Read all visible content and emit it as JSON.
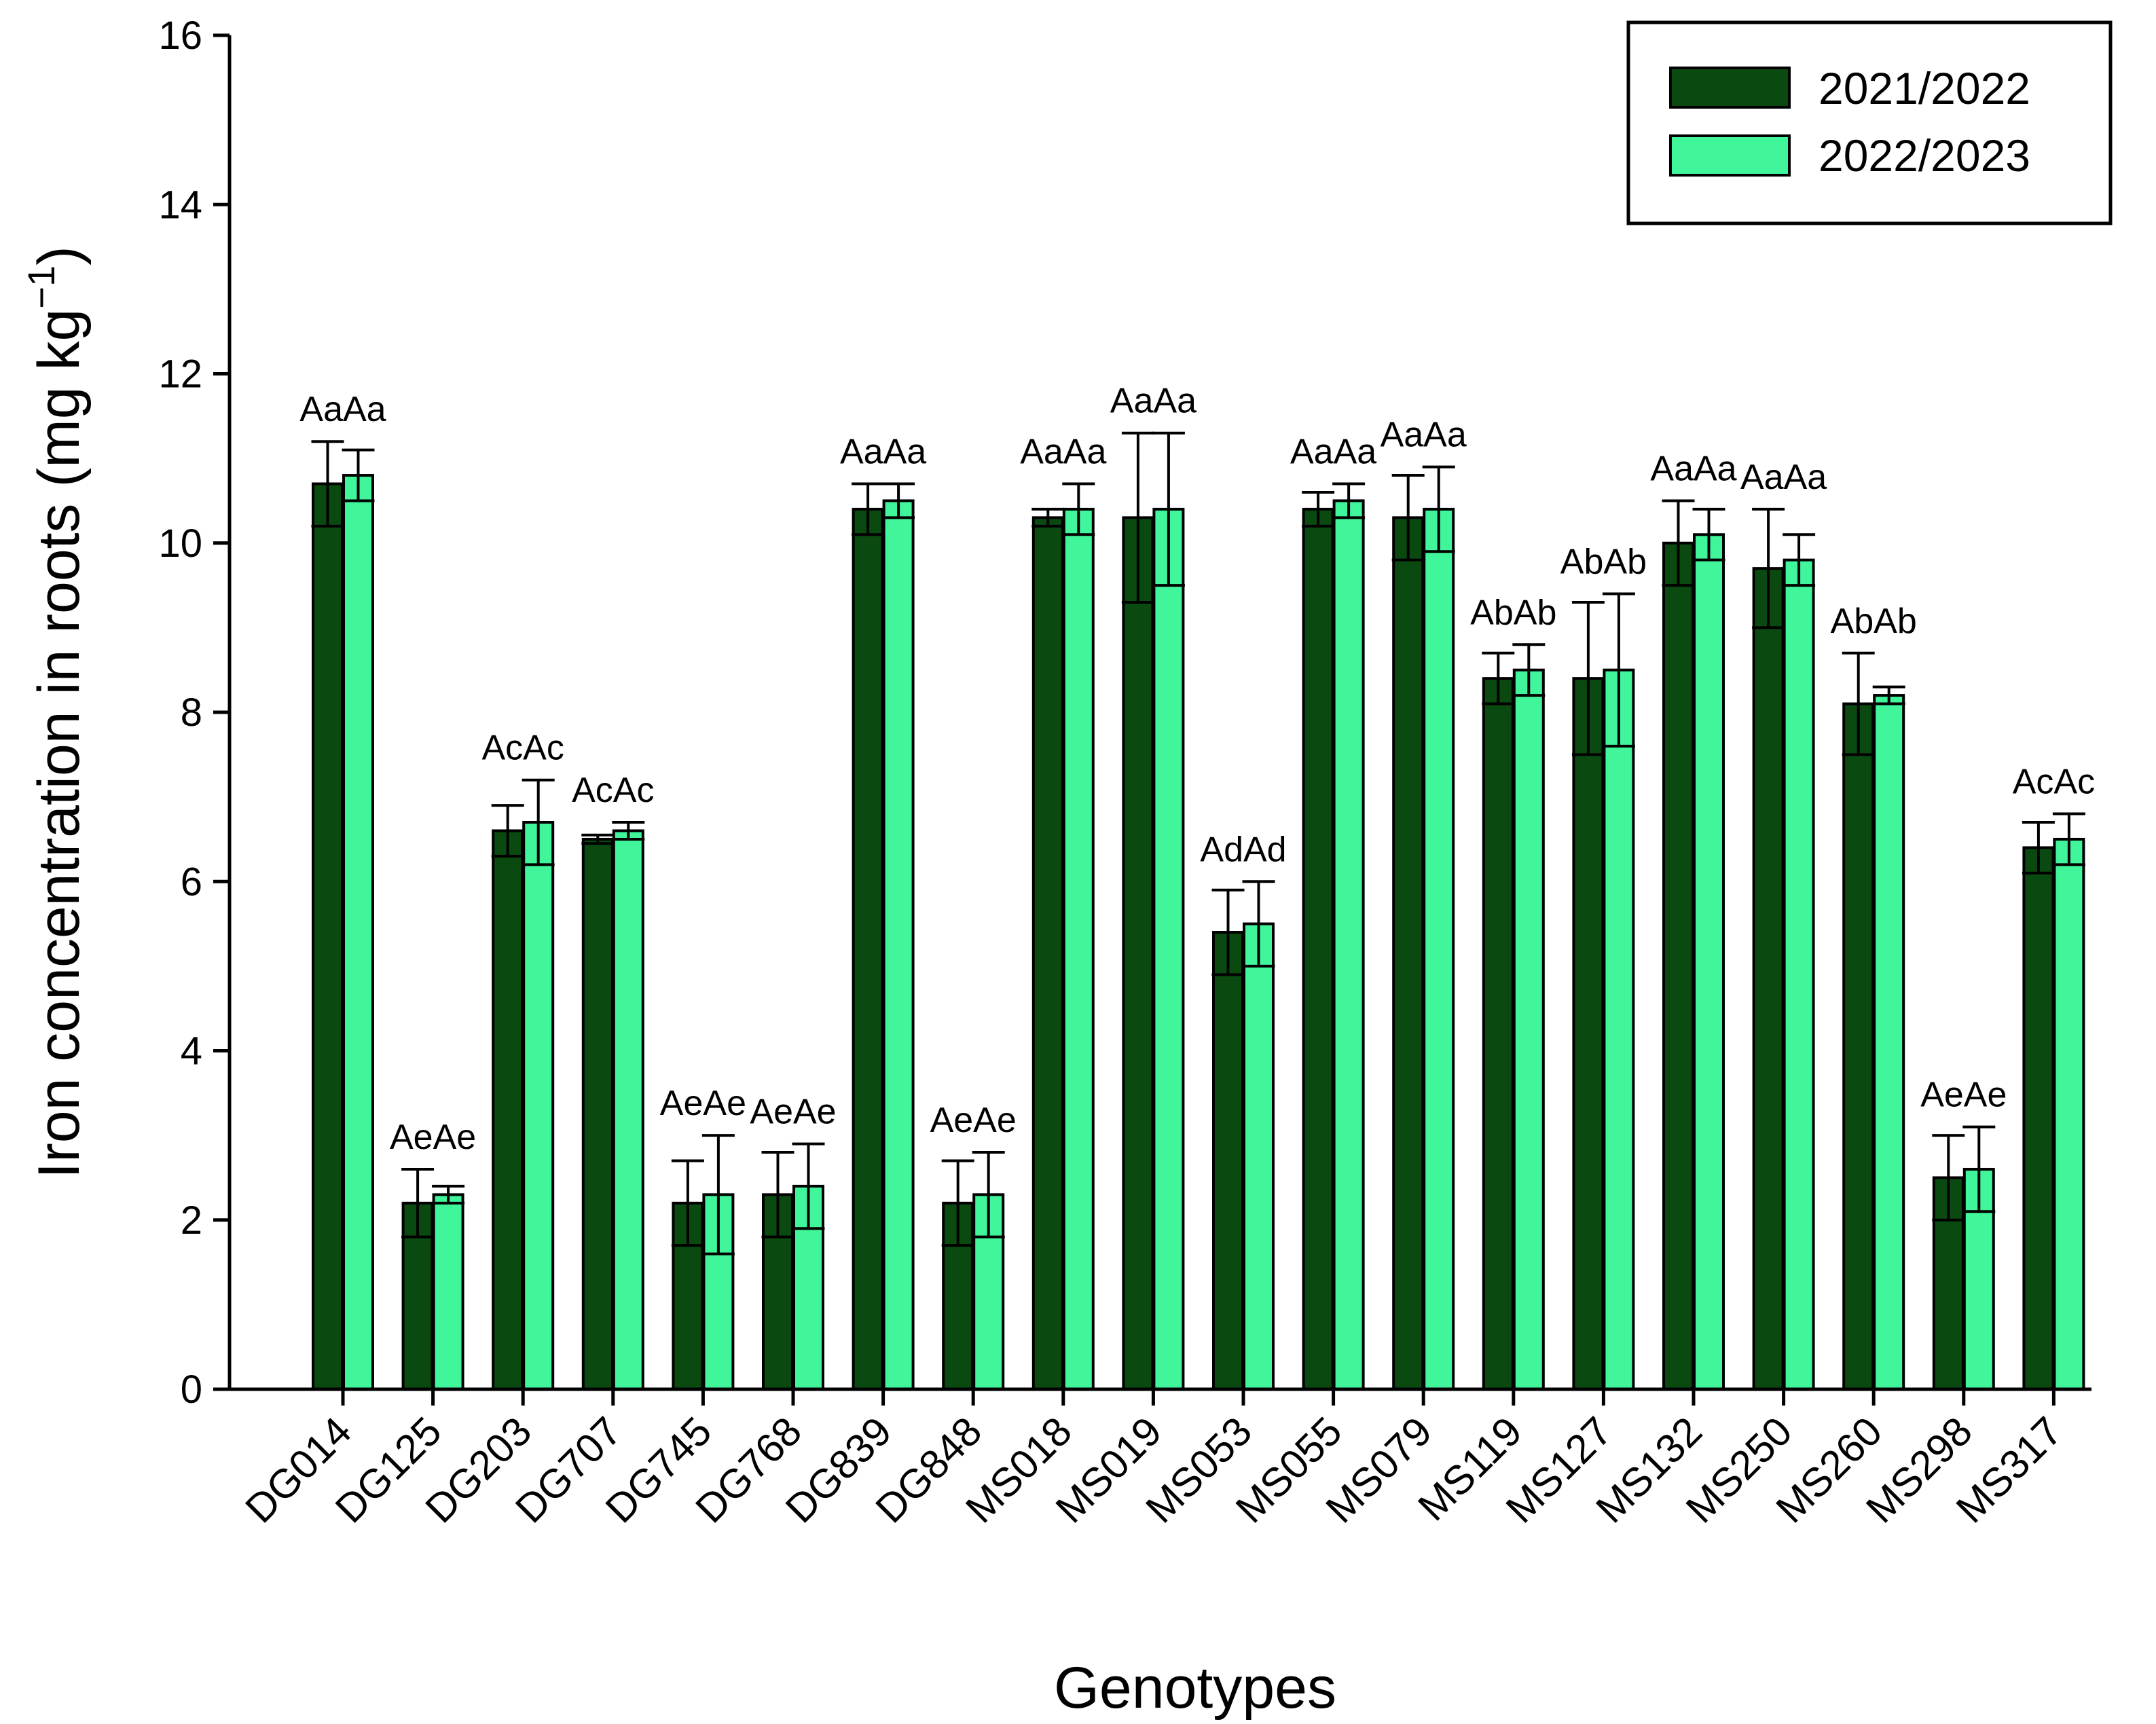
{
  "chart_data": {
    "type": "bar",
    "title": "",
    "xlabel": "Genotypes",
    "ylabel": "Iron concentration in roots (mg kg",
    "ylabel_superscript": "−1",
    "ylabel_close": ")",
    "ylim": [
      0,
      16
    ],
    "yticks": [
      "0",
      "2",
      "4",
      "6",
      "8",
      "10",
      "12",
      "14",
      "16"
    ],
    "legend_position": "top-right",
    "categories": [
      "DG014",
      "DG125",
      "DG203",
      "DG707",
      "DG745",
      "DG768",
      "DG839",
      "DG848",
      "MS018",
      "MS019",
      "MS053",
      "MS055",
      "MS079",
      "MS119",
      "MS127",
      "MS132",
      "MS250",
      "MS260",
      "MS298",
      "MS317"
    ],
    "series": [
      {
        "name": "2021/2022",
        "color": "#0a4a10",
        "values": [
          10.7,
          2.2,
          6.6,
          6.5,
          2.2,
          2.3,
          10.4,
          2.2,
          10.3,
          10.3,
          5.4,
          10.4,
          10.3,
          8.4,
          8.4,
          10.0,
          9.7,
          8.1,
          2.5,
          6.4
        ],
        "errors": [
          0.5,
          0.4,
          0.3,
          0.05,
          0.5,
          0.5,
          0.3,
          0.5,
          0.1,
          1.0,
          0.5,
          0.2,
          0.5,
          0.3,
          0.9,
          0.5,
          0.7,
          0.6,
          0.5,
          0.3
        ]
      },
      {
        "name": "2022/2023",
        "color": "#40f59a",
        "values": [
          10.8,
          2.3,
          6.7,
          6.6,
          2.3,
          2.4,
          10.5,
          2.3,
          10.4,
          10.4,
          5.5,
          10.5,
          10.4,
          8.5,
          8.5,
          10.1,
          9.8,
          8.2,
          2.6,
          6.5
        ],
        "errors": [
          0.3,
          0.1,
          0.5,
          0.1,
          0.7,
          0.5,
          0.2,
          0.5,
          0.3,
          0.9,
          0.5,
          0.2,
          0.5,
          0.3,
          0.9,
          0.3,
          0.3,
          0.1,
          0.5,
          0.3
        ]
      }
    ],
    "annotations": [
      "AaAa",
      "AeAe",
      "AcAc",
      "AcAc",
      "AeAe",
      "AeAe",
      "AaAa",
      "AeAe",
      "AaAa",
      "AaAa",
      "AdAd",
      "AaAa",
      "AaAa",
      "AbAb",
      "AbAb",
      "AaAa",
      "AaAa",
      "AbAb",
      "AeAe",
      "AcAc"
    ]
  }
}
